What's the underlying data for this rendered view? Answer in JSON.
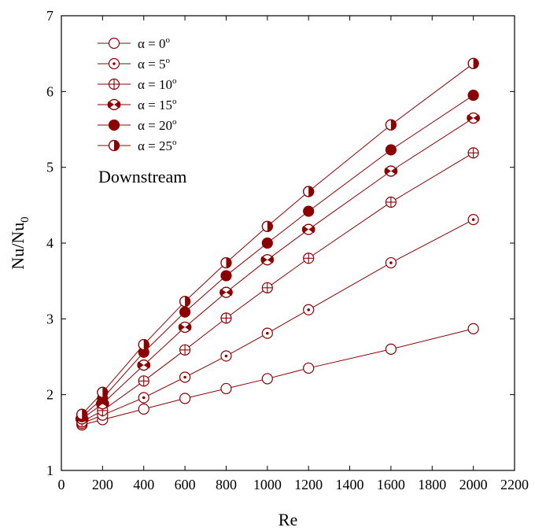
{
  "chart_data": {
    "type": "line",
    "xlabel": "Re",
    "ylabel": "Nu/Nu",
    "ylabel_sub": "0",
    "xlim": [
      0,
      2200
    ],
    "ylim": [
      1,
      7
    ],
    "xticks": [
      0,
      200,
      400,
      600,
      800,
      1000,
      1200,
      1400,
      1600,
      1800,
      2000,
      2200
    ],
    "yticks": [
      1,
      2,
      3,
      4,
      5,
      6,
      7
    ],
    "grid": false,
    "legend_position": "top-left",
    "annotation": "Downstream",
    "color": "#8b0000",
    "x": [
      100,
      200,
      400,
      600,
      800,
      1000,
      1200,
      1600,
      2000
    ],
    "series": [
      {
        "label": "α = 0",
        "sup": "o",
        "marker": "open-circle",
        "values": [
          1.6,
          1.67,
          1.81,
          1.95,
          2.08,
          2.21,
          2.35,
          2.6,
          2.87
        ]
      },
      {
        "label": "α = 5",
        "sup": "o",
        "marker": "dot-circle",
        "values": [
          1.62,
          1.73,
          1.96,
          2.23,
          2.51,
          2.81,
          3.12,
          3.74,
          4.31
        ]
      },
      {
        "label": "α = 10",
        "sup": "o",
        "marker": "cross-circle",
        "values": [
          1.64,
          1.79,
          2.18,
          2.59,
          3.01,
          3.41,
          3.8,
          4.54,
          5.19
        ]
      },
      {
        "label": "α = 15",
        "sup": "o",
        "marker": "bowtie-circle",
        "values": [
          1.68,
          1.88,
          2.39,
          2.89,
          3.35,
          3.78,
          4.18,
          4.95,
          5.65
        ]
      },
      {
        "label": "α = 20",
        "sup": "o",
        "marker": "filled-circle",
        "values": [
          1.71,
          1.95,
          2.56,
          3.09,
          3.57,
          4.0,
          4.42,
          5.23,
          5.95
        ]
      },
      {
        "label": "α = 25",
        "sup": "o",
        "marker": "half-circle",
        "values": [
          1.74,
          2.03,
          2.66,
          3.23,
          3.74,
          4.22,
          4.68,
          5.56,
          6.37
        ]
      }
    ]
  }
}
